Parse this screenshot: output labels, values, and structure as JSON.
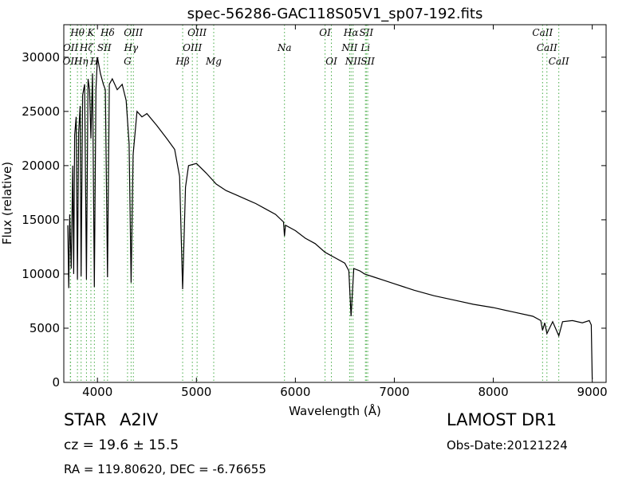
{
  "chart_data": {
    "type": "line",
    "title": "spec-56286-GAC118S05V1_sp07-192.fits",
    "xlabel": "Wavelength (Å)",
    "ylabel": "Flux (relative)",
    "color": "#000000",
    "line_color": "#44aa44",
    "xlim": [
      3660,
      9140
    ],
    "ylim": [
      0,
      33000
    ],
    "xticks": [
      4000,
      5000,
      6000,
      7000,
      8000,
      9000
    ],
    "yticks": [
      0,
      5000,
      10000,
      15000,
      20000,
      25000,
      30000
    ],
    "x": [
      3700,
      3710,
      3720,
      3735,
      3750,
      3760,
      3770,
      3785,
      3798,
      3810,
      3825,
      3835,
      3850,
      3870,
      3889,
      3905,
      3920,
      3934,
      3950,
      3969,
      3985,
      4000,
      4030,
      4060,
      4080,
      4102,
      4120,
      4150,
      4200,
      4250,
      4290,
      4320,
      4340,
      4360,
      4400,
      4450,
      4500,
      4600,
      4700,
      4780,
      4830,
      4861,
      4890,
      4920,
      5000,
      5100,
      5200,
      5300,
      5400,
      5500,
      5600,
      5700,
      5800,
      5880,
      5890,
      5900,
      6000,
      6100,
      6200,
      6300,
      6400,
      6500,
      6540,
      6563,
      6590,
      6650,
      6700,
      6800,
      6900,
      7000,
      7200,
      7400,
      7600,
      7800,
      8000,
      8200,
      8400,
      8480,
      8498,
      8520,
      8542,
      8600,
      8662,
      8700,
      8800,
      8900,
      8970,
      8990,
      9000
    ],
    "values": [
      14500,
      8700,
      15500,
      10500,
      20000,
      10000,
      22800,
      24500,
      9500,
      23000,
      25500,
      9800,
      26500,
      27500,
      9500,
      28000,
      27000,
      22500,
      28500,
      8800,
      27000,
      30000,
      28500,
      27500,
      27000,
      9700,
      27500,
      28000,
      27000,
      27500,
      26000,
      22000,
      9200,
      21000,
      25000,
      24500,
      24800,
      23700,
      22500,
      21500,
      19000,
      8600,
      18000,
      20000,
      20200,
      19300,
      18300,
      17700,
      17300,
      16900,
      16500,
      16000,
      15500,
      14800,
      13500,
      14500,
      14000,
      13300,
      12800,
      12000,
      11500,
      11000,
      10300,
      6100,
      10500,
      10300,
      10000,
      9700,
      9400,
      9100,
      8500,
      8000,
      7600,
      7200,
      6900,
      6500,
      6100,
      5700,
      4800,
      5500,
      4500,
      5600,
      4300,
      5600,
      5700,
      5500,
      5700,
      5300,
      300
    ],
    "annotations": [
      {
        "x": 3726,
        "label": "OII"
      },
      {
        "x": 3729,
        "label": "OII"
      },
      {
        "x": 3798,
        "label": "Hθ"
      },
      {
        "x": 3835,
        "label": "Hη"
      },
      {
        "x": 3889,
        "label": "Hζ"
      },
      {
        "x": 3934,
        "label": "K"
      },
      {
        "x": 3969,
        "label": "H"
      },
      {
        "x": 4069,
        "label": "SII"
      },
      {
        "x": 4102,
        "label": "Hδ"
      },
      {
        "x": 4304,
        "label": "G"
      },
      {
        "x": 4340,
        "label": "Hγ"
      },
      {
        "x": 4363,
        "label": "OIII"
      },
      {
        "x": 4861,
        "label": "Hβ"
      },
      {
        "x": 4959,
        "label": "OIII"
      },
      {
        "x": 5007,
        "label": "OIII"
      },
      {
        "x": 5175,
        "label": "Mg"
      },
      {
        "x": 5890,
        "label": "Na"
      },
      {
        "x": 6300,
        "label": "OI"
      },
      {
        "x": 6364,
        "label": "OI"
      },
      {
        "x": 6548,
        "label": "NII"
      },
      {
        "x": 6563,
        "label": "Hα"
      },
      {
        "x": 6583,
        "label": "NII"
      },
      {
        "x": 6708,
        "label": "Li"
      },
      {
        "x": 6717,
        "label": "SII"
      },
      {
        "x": 6731,
        "label": "SII"
      },
      {
        "x": 8498,
        "label": "CaII"
      },
      {
        "x": 8542,
        "label": "CaII"
      },
      {
        "x": 8662,
        "label": "CaII"
      }
    ]
  },
  "info": {
    "class": "STAR",
    "subclass": "A2IV",
    "cz": "cz = 19.6  ± 15.5",
    "coords": "RA = 119.80620, DEC = -6.76655",
    "survey": "LAMOST DR1",
    "date": "Obs-Date:20121224"
  }
}
